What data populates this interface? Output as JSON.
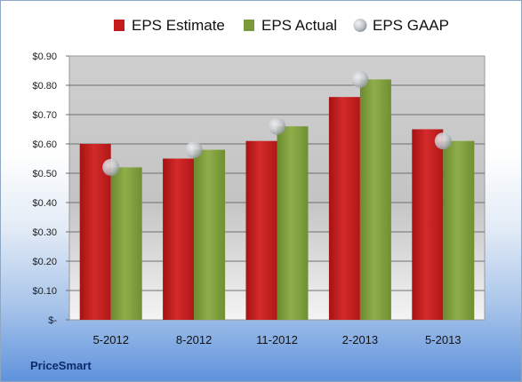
{
  "company": "PriceSmart",
  "chart_data": {
    "type": "bar",
    "categories": [
      "5-2012",
      "8-2012",
      "11-2012",
      "2-2013",
      "5-2013"
    ],
    "series": [
      {
        "name": "EPS Estimate",
        "kind": "bar",
        "color": "#c41c1c",
        "values": [
          0.6,
          0.55,
          0.61,
          0.76,
          0.65
        ]
      },
      {
        "name": "EPS Actual",
        "kind": "bar",
        "color": "#7a9a3a",
        "values": [
          0.52,
          0.58,
          0.66,
          0.82,
          0.61
        ]
      },
      {
        "name": "EPS GAAP",
        "kind": "marker",
        "color": "#c8ccd2",
        "values": [
          0.52,
          0.58,
          0.66,
          0.82,
          0.61
        ]
      }
    ],
    "ylim": [
      0,
      0.9
    ],
    "yticks": [
      0,
      0.1,
      0.2,
      0.3,
      0.4,
      0.5,
      0.6,
      0.7,
      0.8,
      0.9
    ],
    "ytick_labels": [
      "$-",
      "$0.10",
      "$0.20",
      "$0.30",
      "$0.40",
      "$0.50",
      "$0.60",
      "$0.70",
      "$0.80",
      "$0.90"
    ],
    "grid": true,
    "legend": "top"
  }
}
